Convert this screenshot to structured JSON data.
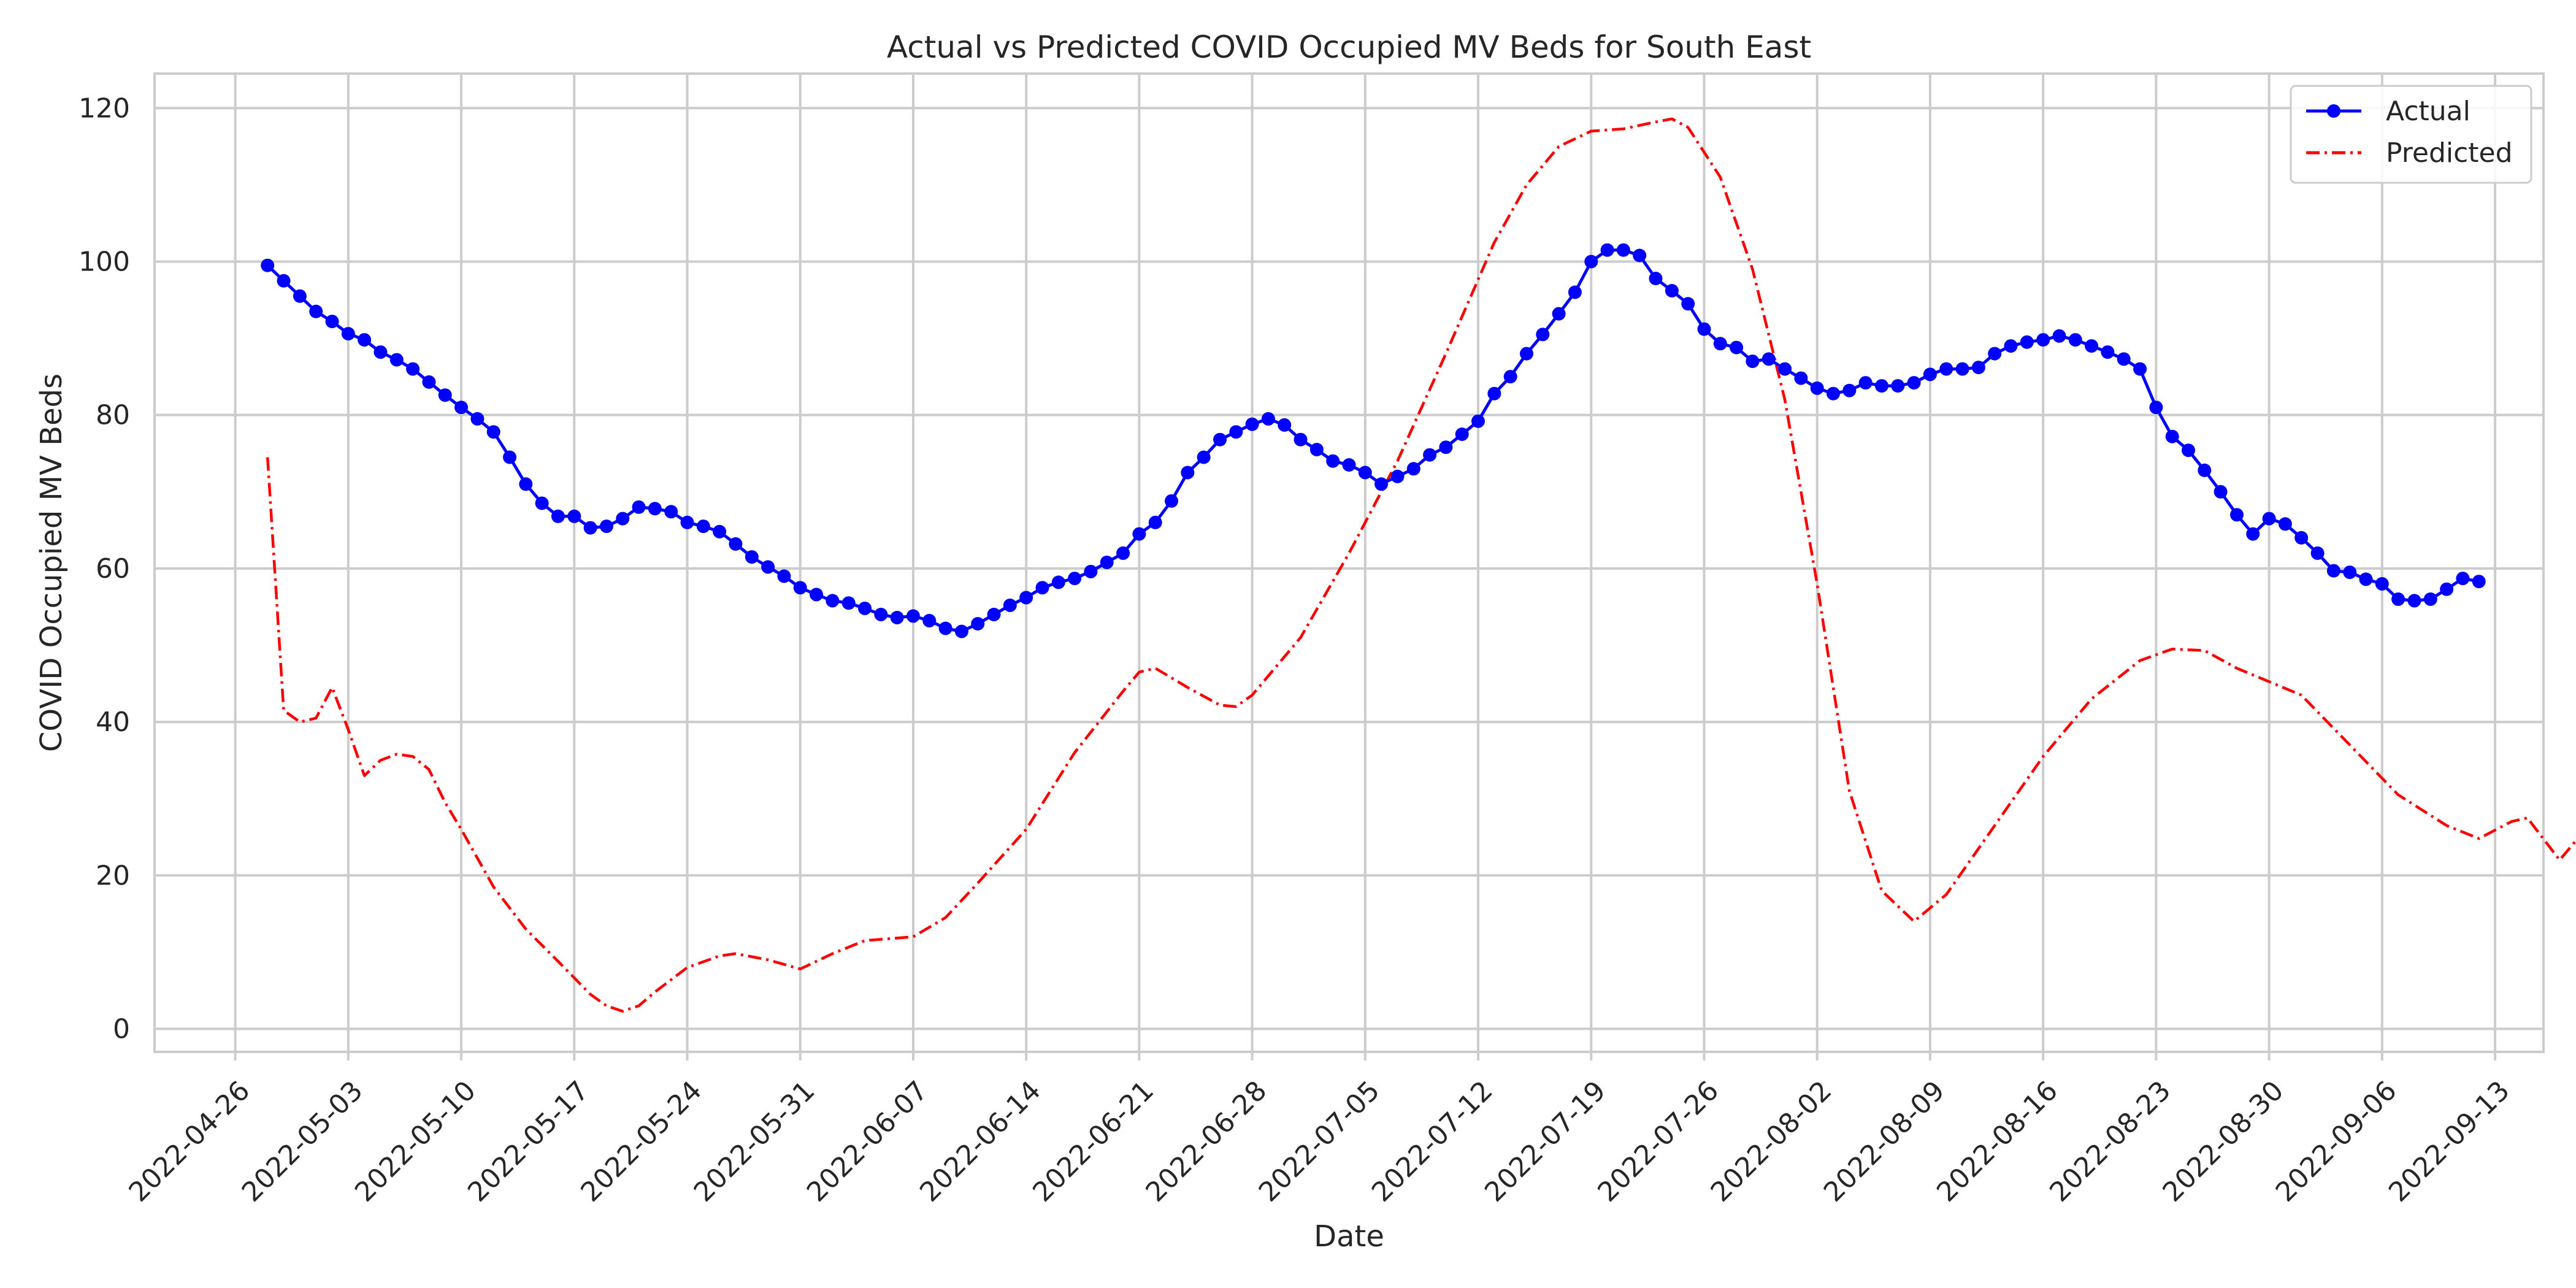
{
  "chart_data": {
    "type": "line",
    "title": "Actual vs Predicted COVID Occupied MV Beds for South East",
    "xlabel": "Date",
    "ylabel": "COVID Occupied MV Beds",
    "x_ticks": [
      "2022-04-26",
      "2022-05-03",
      "2022-05-10",
      "2022-05-17",
      "2022-05-24",
      "2022-05-31",
      "2022-06-07",
      "2022-06-14",
      "2022-06-21",
      "2022-06-28",
      "2022-07-05",
      "2022-07-12",
      "2022-07-19",
      "2022-07-26",
      "2022-08-02",
      "2022-08-09",
      "2022-08-16",
      "2022-08-23",
      "2022-08-30",
      "2022-09-06",
      "2022-09-13"
    ],
    "y_ticks": [
      0,
      20,
      40,
      60,
      80,
      100,
      120
    ],
    "xlim": [
      "2022-04-21",
      "2022-09-16"
    ],
    "ylim": [
      -3,
      124.5
    ],
    "grid": true,
    "legend_position": "top-right",
    "colors": {
      "actual": "#0000ff",
      "predicted": "#ff0000",
      "grid": "#cccccc"
    },
    "series": [
      {
        "name": "Actual",
        "style": "solid line with circle markers",
        "start_date": "2022-04-28",
        "values": [
          99.5,
          97.5,
          95.5,
          93.5,
          92.2,
          90.6,
          89.8,
          88.2,
          87.2,
          86.0,
          84.3,
          82.6,
          81.0,
          79.5,
          77.8,
          74.5,
          71.0,
          68.5,
          66.8,
          66.8,
          65.3,
          65.5,
          66.5,
          68.0,
          67.8,
          67.4,
          66.0,
          65.5,
          64.8,
          63.2,
          61.5,
          60.2,
          59.0,
          57.5,
          56.6,
          55.8,
          55.5,
          54.8,
          54.0,
          53.6,
          53.8,
          53.2,
          52.2,
          51.8,
          52.8,
          54.0,
          55.2,
          56.2,
          57.5,
          58.2,
          58.7,
          59.6,
          60.8,
          62.0,
          64.5,
          66.0,
          68.8,
          72.5,
          74.5,
          76.8,
          77.8,
          78.8,
          79.5,
          78.7,
          76.8,
          75.5,
          74.0,
          73.5,
          72.5,
          71.0,
          72.0,
          73.0,
          74.8,
          75.8,
          77.5,
          79.2,
          82.8,
          85.0,
          88.0,
          90.5,
          93.2,
          96.0,
          100.0,
          101.5,
          101.5,
          100.8,
          97.8,
          96.2,
          94.5,
          91.2,
          89.3,
          88.8,
          87.0,
          87.3,
          86.0,
          84.8,
          83.5,
          82.8,
          83.2,
          84.2,
          83.8,
          83.8,
          84.2,
          85.3,
          86.0,
          86.0,
          86.2,
          88.0,
          89.0,
          89.5,
          89.8,
          90.3,
          89.8,
          89.0,
          88.2,
          87.3,
          86.0,
          81.0,
          77.2,
          75.4,
          72.8,
          70.0,
          67.0,
          64.5,
          66.5,
          65.8,
          64.0,
          62.0,
          59.7,
          59.5,
          58.6,
          58.0,
          56.0,
          55.8,
          56.0,
          57.3,
          58.7,
          58.3
        ]
      },
      {
        "name": "Predicted",
        "style": "red dash-dot line",
        "points": [
          [
            "2022-04-28",
            74.5
          ],
          [
            "2022-04-29",
            41.5
          ],
          [
            "2022-04-30",
            40.0
          ],
          [
            "2022-05-01",
            40.5
          ],
          [
            "2022-05-02",
            44.5
          ],
          [
            "2022-05-03",
            39.0
          ],
          [
            "2022-05-04",
            33.0
          ],
          [
            "2022-05-05",
            35.0
          ],
          [
            "2022-05-06",
            35.8
          ],
          [
            "2022-05-07",
            35.5
          ],
          [
            "2022-05-08",
            33.8
          ],
          [
            "2022-05-09",
            29.5
          ],
          [
            "2022-05-10",
            26.0
          ],
          [
            "2022-05-12",
            18.5
          ],
          [
            "2022-05-14",
            13.0
          ],
          [
            "2022-05-16",
            8.8
          ],
          [
            "2022-05-18",
            4.5
          ],
          [
            "2022-05-19",
            3.0
          ],
          [
            "2022-05-20",
            2.3
          ],
          [
            "2022-05-21",
            3.0
          ],
          [
            "2022-05-22",
            4.8
          ],
          [
            "2022-05-24",
            8.0
          ],
          [
            "2022-05-26",
            9.5
          ],
          [
            "2022-05-27",
            9.8
          ],
          [
            "2022-05-29",
            9.0
          ],
          [
            "2022-05-31",
            7.8
          ],
          [
            "2022-06-02",
            9.8
          ],
          [
            "2022-06-04",
            11.5
          ],
          [
            "2022-06-07",
            12.0
          ],
          [
            "2022-06-09",
            14.5
          ],
          [
            "2022-06-11",
            19.0
          ],
          [
            "2022-06-14",
            26.0
          ],
          [
            "2022-06-17",
            36.0
          ],
          [
            "2022-06-20",
            44.0
          ],
          [
            "2022-06-21",
            46.5
          ],
          [
            "2022-06-22",
            47.0
          ],
          [
            "2022-06-24",
            44.5
          ],
          [
            "2022-06-26",
            42.2
          ],
          [
            "2022-06-27",
            42.0
          ],
          [
            "2022-06-28",
            43.5
          ],
          [
            "2022-07-01",
            51.0
          ],
          [
            "2022-07-04",
            62.0
          ],
          [
            "2022-07-07",
            74.0
          ],
          [
            "2022-07-10",
            88.0
          ],
          [
            "2022-07-13",
            102.5
          ],
          [
            "2022-07-15",
            110.0
          ],
          [
            "2022-07-17",
            115.0
          ],
          [
            "2022-07-19",
            117.0
          ],
          [
            "2022-07-21",
            117.3
          ],
          [
            "2022-07-23",
            118.2
          ],
          [
            "2022-07-24",
            118.6
          ],
          [
            "2022-07-25",
            117.5
          ],
          [
            "2022-07-27",
            111.0
          ],
          [
            "2022-07-29",
            99.0
          ],
          [
            "2022-07-31",
            82.0
          ],
          [
            "2022-08-02",
            58.0
          ],
          [
            "2022-08-04",
            31.0
          ],
          [
            "2022-08-06",
            18.0
          ],
          [
            "2022-08-08",
            14.0
          ],
          [
            "2022-08-10",
            17.5
          ],
          [
            "2022-08-13",
            26.5
          ],
          [
            "2022-08-16",
            35.5
          ],
          [
            "2022-08-19",
            43.0
          ],
          [
            "2022-08-22",
            48.0
          ],
          [
            "2022-08-24",
            49.5
          ],
          [
            "2022-08-26",
            49.3
          ],
          [
            "2022-08-28",
            47.0
          ],
          [
            "2022-09-01",
            43.5
          ],
          [
            "2022-09-04",
            37.0
          ],
          [
            "2022-09-07",
            30.5
          ],
          [
            "2022-09-10",
            26.5
          ],
          [
            "2022-09-12",
            24.8
          ],
          [
            "2022-09-14",
            27.0
          ],
          [
            "2022-09-15",
            27.5
          ],
          [
            "2022-09-17",
            22.0
          ],
          [
            "2022-09-18",
            24.5
          ]
        ]
      }
    ]
  }
}
